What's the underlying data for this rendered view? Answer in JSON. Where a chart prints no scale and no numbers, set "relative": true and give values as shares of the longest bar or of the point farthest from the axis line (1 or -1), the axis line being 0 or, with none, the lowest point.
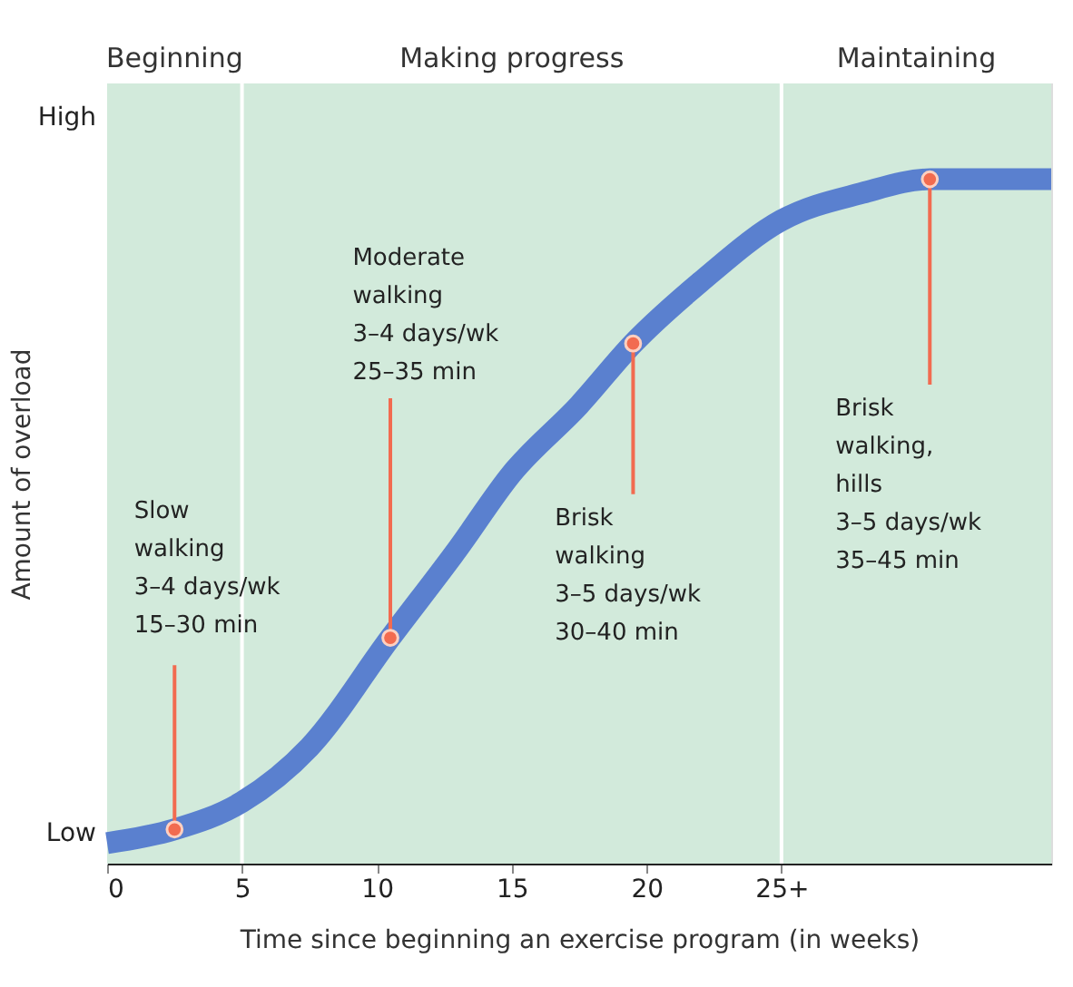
{
  "chart_data": {
    "type": "line",
    "relative": true,
    "xlabel": "Time since beginning an exercise program (in weeks)",
    "ylabel": "Amount of overload",
    "x": [
      0,
      2.5,
      5,
      7.5,
      10.5,
      13,
      15,
      17.5,
      19.5,
      22,
      25,
      28,
      30.5,
      33,
      35
    ],
    "series": [
      {
        "color": "#5a80cf",
        "values": [
          0.03,
          0.05,
          0.09,
          0.17,
          0.33,
          0.46,
          0.57,
          0.67,
          0.76,
          0.85,
          0.94,
          0.98,
          1,
          1,
          1
        ]
      }
    ],
    "xlim": [
      0,
      35
    ],
    "xticks": [
      0,
      5,
      10,
      15,
      20,
      {
        "value": 25,
        "label": "25+"
      }
    ],
    "bands": [
      {
        "axis": "x",
        "from": 0,
        "to": 5,
        "label": "Beginning",
        "color": "#d2eadb"
      },
      {
        "axis": "x",
        "from": 5,
        "to": 25,
        "label": "Making progress",
        "color": "#d2eadb"
      },
      {
        "axis": "x",
        "from": 25,
        "to": 35,
        "label": "Maintaining",
        "color": "#d2eadb"
      }
    ],
    "ref_lines": [
      {
        "axis": "x",
        "value": 5,
        "color": "#ffffff"
      },
      {
        "axis": "x",
        "value": 25,
        "color": "#ffffff"
      }
    ],
    "annotations": [
      "Low",
      "High",
      {
        "text": "Slow walking 3–4 days/wk 15–30 min",
        "x": 2.5,
        "y": 0.05
      },
      {
        "text": "Moderate walking 3–4 days/wk 25–35 min",
        "x": 10.5,
        "y": 0.33
      },
      {
        "text": "Brisk walking 3–5 days/wk 30–40 min",
        "x": 19.5,
        "y": 0.76
      },
      {
        "text": "Brisk walking, hills 3–5 days/wk 35–45 min",
        "x": 30.5,
        "y": 1
      }
    ]
  }
}
